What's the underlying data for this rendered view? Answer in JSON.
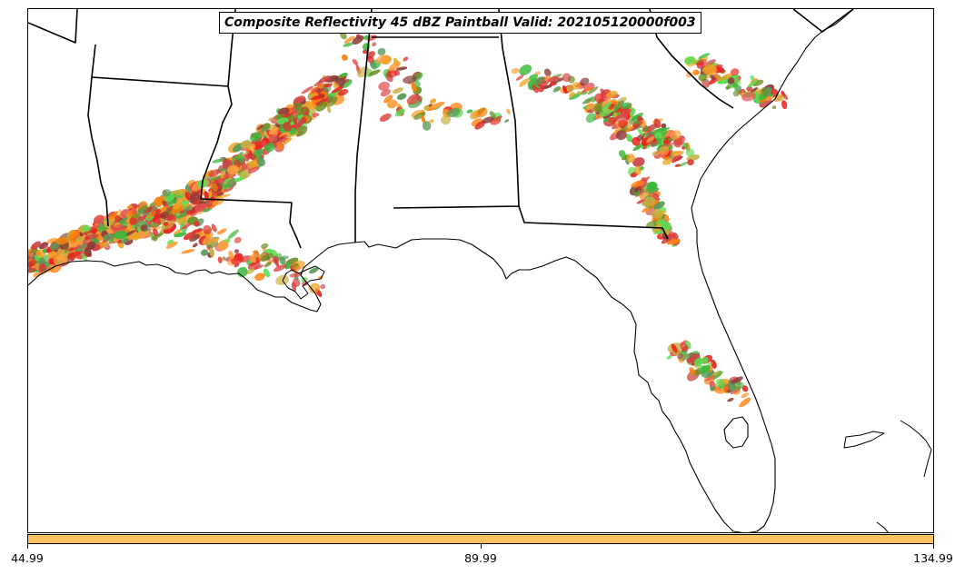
{
  "title": "Composite Reflectivity 45 dBZ Paintball Valid: 202105120000f003",
  "colorbar": {
    "color": "#ffc260",
    "ticks": [
      "44.99",
      "89.99",
      "134.99"
    ]
  },
  "palette": [
    "#e8221e",
    "#ff7f0e",
    "#f0a020",
    "#d8322e",
    "#3ab83a",
    "#5cdc50",
    "#c8b040",
    "#8c3a3a",
    "#6b8e23",
    "#cc4444",
    "#ffa040",
    "#5a9a5a",
    "#e05050"
  ],
  "map": {
    "features": [
      "state-borders",
      "coastline",
      "gulf-of-mexico",
      "florida",
      "louisiana-delta",
      "lake-okeechobee",
      "bahamas-islands"
    ]
  }
}
